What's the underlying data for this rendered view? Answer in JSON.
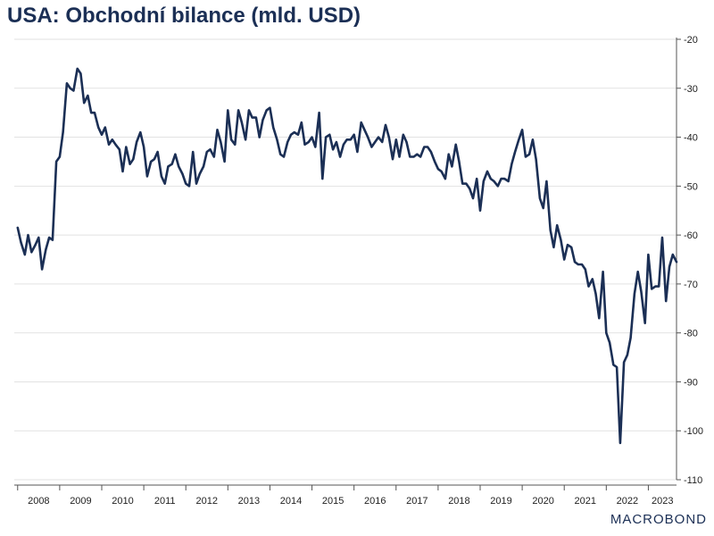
{
  "header": {
    "title": "USA: Obchodní bilance (mld. USD)"
  },
  "brand": {
    "logo_text": "MACROBOND"
  },
  "colors": {
    "line": "#1b2f55",
    "grid": "#e2e2e2",
    "title": "#1b2f55"
  },
  "chart_data": {
    "type": "line",
    "title": "USA: Obchodní bilance (mld. USD)",
    "xlabel": "",
    "ylabel": "",
    "ylim": [
      -110,
      -20
    ],
    "yticks": [
      -20,
      -30,
      -40,
      -50,
      -60,
      -70,
      -80,
      -90,
      -100,
      -110
    ],
    "xlim": [
      2007.92,
      2023.67
    ],
    "xticks": [
      "2008",
      "2009",
      "2010",
      "2011",
      "2012",
      "2013",
      "2014",
      "2015",
      "2016",
      "2017",
      "2018",
      "2019",
      "2020",
      "2021",
      "2022",
      "2023"
    ],
    "grid": true,
    "y_axis_side": "right",
    "legend": "none",
    "series": [
      {
        "values": [
          [
            2008.0,
            -58.5
          ],
          [
            2008.08,
            -61.5
          ],
          [
            2008.17,
            -64.0
          ],
          [
            2008.25,
            -60.0
          ],
          [
            2008.33,
            -63.5
          ],
          [
            2008.42,
            -62.0
          ],
          [
            2008.5,
            -60.5
          ],
          [
            2008.58,
            -67.0
          ],
          [
            2008.67,
            -63.0
          ],
          [
            2008.75,
            -60.5
          ],
          [
            2008.83,
            -61.0
          ],
          [
            2008.92,
            -45.0
          ],
          [
            2009.0,
            -44.0
          ],
          [
            2009.08,
            -39.0
          ],
          [
            2009.17,
            -29.0
          ],
          [
            2009.25,
            -30.0
          ],
          [
            2009.33,
            -30.5
          ],
          [
            2009.42,
            -26.0
          ],
          [
            2009.5,
            -27.0
          ],
          [
            2009.58,
            -33.0
          ],
          [
            2009.67,
            -31.5
          ],
          [
            2009.75,
            -35.0
          ],
          [
            2009.83,
            -35.0
          ],
          [
            2009.92,
            -38.0
          ],
          [
            2010.0,
            -39.5
          ],
          [
            2010.08,
            -38.0
          ],
          [
            2010.17,
            -41.5
          ],
          [
            2010.25,
            -40.5
          ],
          [
            2010.33,
            -41.5
          ],
          [
            2010.42,
            -42.5
          ],
          [
            2010.5,
            -47.0
          ],
          [
            2010.58,
            -42.0
          ],
          [
            2010.67,
            -45.5
          ],
          [
            2010.75,
            -44.5
          ],
          [
            2010.83,
            -41.0
          ],
          [
            2010.92,
            -39.0
          ],
          [
            2011.0,
            -42.0
          ],
          [
            2011.08,
            -48.0
          ],
          [
            2011.17,
            -45.0
          ],
          [
            2011.25,
            -44.5
          ],
          [
            2011.33,
            -43.0
          ],
          [
            2011.42,
            -48.0
          ],
          [
            2011.5,
            -49.5
          ],
          [
            2011.58,
            -46.0
          ],
          [
            2011.67,
            -45.5
          ],
          [
            2011.75,
            -43.5
          ],
          [
            2011.83,
            -46.0
          ],
          [
            2011.92,
            -47.5
          ],
          [
            2012.0,
            -49.5
          ],
          [
            2012.08,
            -50.0
          ],
          [
            2012.17,
            -43.0
          ],
          [
            2012.25,
            -49.5
          ],
          [
            2012.33,
            -47.5
          ],
          [
            2012.42,
            -46.0
          ],
          [
            2012.5,
            -43.0
          ],
          [
            2012.58,
            -42.5
          ],
          [
            2012.67,
            -44.0
          ],
          [
            2012.75,
            -38.5
          ],
          [
            2012.83,
            -41.0
          ],
          [
            2012.92,
            -45.0
          ],
          [
            2013.0,
            -34.5
          ],
          [
            2013.08,
            -40.5
          ],
          [
            2013.17,
            -41.5
          ],
          [
            2013.25,
            -34.5
          ],
          [
            2013.33,
            -37.0
          ],
          [
            2013.42,
            -40.5
          ],
          [
            2013.5,
            -34.5
          ],
          [
            2013.58,
            -36.0
          ],
          [
            2013.67,
            -36.0
          ],
          [
            2013.75,
            -40.0
          ],
          [
            2013.83,
            -36.5
          ],
          [
            2013.92,
            -34.5
          ],
          [
            2014.0,
            -34.0
          ],
          [
            2014.08,
            -38.0
          ],
          [
            2014.17,
            -40.5
          ],
          [
            2014.25,
            -43.5
          ],
          [
            2014.33,
            -44.0
          ],
          [
            2014.42,
            -41.0
          ],
          [
            2014.5,
            -39.5
          ],
          [
            2014.58,
            -39.0
          ],
          [
            2014.67,
            -39.5
          ],
          [
            2014.75,
            -37.0
          ],
          [
            2014.83,
            -41.5
          ],
          [
            2014.92,
            -41.0
          ],
          [
            2015.0,
            -40.0
          ],
          [
            2015.08,
            -42.0
          ],
          [
            2015.17,
            -35.0
          ],
          [
            2015.25,
            -48.5
          ],
          [
            2015.33,
            -40.0
          ],
          [
            2015.42,
            -39.5
          ],
          [
            2015.5,
            -42.5
          ],
          [
            2015.58,
            -41.0
          ],
          [
            2015.67,
            -44.0
          ],
          [
            2015.75,
            -41.5
          ],
          [
            2015.83,
            -40.5
          ],
          [
            2015.92,
            -40.5
          ],
          [
            2016.0,
            -39.5
          ],
          [
            2016.08,
            -43.0
          ],
          [
            2016.17,
            -37.0
          ],
          [
            2016.25,
            -38.5
          ],
          [
            2016.33,
            -40.0
          ],
          [
            2016.42,
            -42.0
          ],
          [
            2016.5,
            -41.0
          ],
          [
            2016.58,
            -40.0
          ],
          [
            2016.67,
            -41.0
          ],
          [
            2016.75,
            -37.5
          ],
          [
            2016.83,
            -40.0
          ],
          [
            2016.92,
            -44.5
          ],
          [
            2017.0,
            -40.5
          ],
          [
            2017.08,
            -44.0
          ],
          [
            2017.17,
            -39.5
          ],
          [
            2017.25,
            -41.0
          ],
          [
            2017.33,
            -44.0
          ],
          [
            2017.42,
            -44.0
          ],
          [
            2017.5,
            -43.5
          ],
          [
            2017.58,
            -44.0
          ],
          [
            2017.67,
            -42.0
          ],
          [
            2017.75,
            -42.0
          ],
          [
            2017.83,
            -43.0
          ],
          [
            2017.92,
            -45.0
          ],
          [
            2018.0,
            -46.5
          ],
          [
            2018.08,
            -47.0
          ],
          [
            2018.17,
            -48.5
          ],
          [
            2018.25,
            -43.5
          ],
          [
            2018.33,
            -46.0
          ],
          [
            2018.42,
            -41.5
          ],
          [
            2018.5,
            -45.0
          ],
          [
            2018.58,
            -49.5
          ],
          [
            2018.67,
            -49.5
          ],
          [
            2018.75,
            -50.5
          ],
          [
            2018.83,
            -52.5
          ],
          [
            2018.92,
            -48.5
          ],
          [
            2019.0,
            -55.0
          ],
          [
            2019.08,
            -49.0
          ],
          [
            2019.17,
            -47.0
          ],
          [
            2019.25,
            -48.5
          ],
          [
            2019.33,
            -49.0
          ],
          [
            2019.42,
            -50.0
          ],
          [
            2019.5,
            -48.5
          ],
          [
            2019.58,
            -48.5
          ],
          [
            2019.67,
            -49.0
          ],
          [
            2019.75,
            -45.5
          ],
          [
            2019.83,
            -43.0
          ],
          [
            2019.92,
            -40.5
          ],
          [
            2020.0,
            -38.5
          ],
          [
            2020.08,
            -44.0
          ],
          [
            2020.17,
            -43.5
          ],
          [
            2020.25,
            -40.5
          ],
          [
            2020.33,
            -44.5
          ],
          [
            2020.42,
            -52.5
          ],
          [
            2020.5,
            -54.5
          ],
          [
            2020.58,
            -49.0
          ],
          [
            2020.67,
            -59.0
          ],
          [
            2020.75,
            -62.5
          ],
          [
            2020.83,
            -58.0
          ],
          [
            2020.92,
            -61.0
          ],
          [
            2021.0,
            -65.0
          ],
          [
            2021.08,
            -62.0
          ],
          [
            2021.17,
            -62.5
          ],
          [
            2021.25,
            -65.5
          ],
          [
            2021.33,
            -66.0
          ],
          [
            2021.42,
            -66.0
          ],
          [
            2021.5,
            -67.0
          ],
          [
            2021.58,
            -70.5
          ],
          [
            2021.67,
            -69.0
          ],
          [
            2021.75,
            -72.0
          ],
          [
            2021.83,
            -77.0
          ],
          [
            2021.92,
            -67.5
          ],
          [
            2022.0,
            -80.0
          ],
          [
            2022.08,
            -82.0
          ],
          [
            2022.17,
            -86.5
          ],
          [
            2022.25,
            -87.0
          ],
          [
            2022.33,
            -102.5
          ],
          [
            2022.42,
            -86.0
          ],
          [
            2022.5,
            -84.5
          ],
          [
            2022.58,
            -81.0
          ],
          [
            2022.67,
            -72.0
          ],
          [
            2022.75,
            -67.5
          ],
          [
            2022.83,
            -71.5
          ],
          [
            2022.92,
            -78.0
          ],
          [
            2023.0,
            -64.0
          ],
          [
            2023.08,
            -71.0
          ],
          [
            2023.17,
            -70.5
          ],
          [
            2023.25,
            -70.5
          ],
          [
            2023.33,
            -60.5
          ],
          [
            2023.42,
            -73.5
          ],
          [
            2023.5,
            -66.5
          ],
          [
            2023.58,
            -64.0
          ],
          [
            2023.67,
            -65.5
          ]
        ]
      }
    ]
  }
}
